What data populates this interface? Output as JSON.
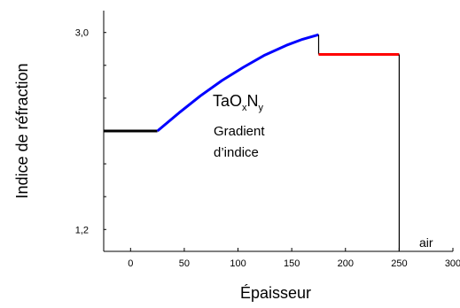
{
  "chart_data": {
    "type": "line",
    "xlabel": "Épaisseur",
    "ylabel": "Indice de réfraction",
    "xlim": [
      -25,
      300
    ],
    "ylim": [
      1.0,
      3.2
    ],
    "x_ticks": [
      0,
      50,
      100,
      150,
      200,
      250,
      300
    ],
    "y_tick_labels": [
      {
        "value": 3.0,
        "label": "3,0"
      },
      {
        "value": 1.2,
        "label": "1,2"
      }
    ],
    "y_minor_ticks": [
      1.2,
      1.5,
      1.8,
      2.1,
      2.4,
      2.7,
      3.0
    ],
    "series": [
      {
        "color": "#000000",
        "points": [
          [
            -25,
            2.1
          ],
          [
            25,
            2.1
          ]
        ]
      },
      {
        "color": "#0000FF",
        "points": [
          [
            25,
            2.1
          ],
          [
            45,
            2.265
          ],
          [
            65,
            2.421
          ],
          [
            85,
            2.561
          ],
          [
            105,
            2.682
          ],
          [
            125,
            2.794
          ],
          [
            145,
            2.883
          ],
          [
            160,
            2.938
          ],
          [
            175,
            2.98
          ]
        ]
      },
      {
        "color": "#000000",
        "points": [
          [
            175,
            2.98
          ],
          [
            175,
            2.8
          ]
        ]
      },
      {
        "color": "#FF0000",
        "points": [
          [
            175,
            2.8
          ],
          [
            250,
            2.8
          ]
        ]
      },
      {
        "color": "#000000",
        "points": [
          [
            250,
            2.8
          ],
          [
            250,
            1.0
          ]
        ]
      }
    ],
    "annotations": {
      "material": {
        "base": "TaO",
        "sub1": "x",
        "mid": "N",
        "sub2": "y",
        "color": "#2E75B6"
      },
      "gradient_line1": "Gradient",
      "gradient_line2": "d’indice",
      "air": "air"
    }
  }
}
